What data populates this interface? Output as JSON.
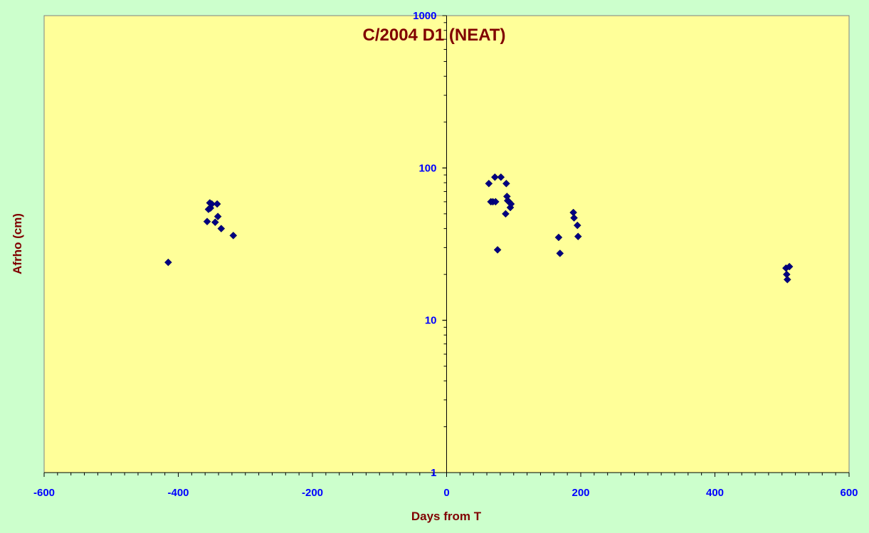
{
  "chart_data": {
    "type": "scatter",
    "title": "C/2004 D1 (NEAT)",
    "xlabel": "Days from T",
    "ylabel": "Afrho (cm)",
    "xlim": [
      -600,
      600
    ],
    "ylim": [
      1,
      1000
    ],
    "yscale": "log",
    "x_ticks": [
      -600,
      -400,
      -200,
      0,
      200,
      400,
      600
    ],
    "x_tick_labels": [
      "-600",
      "-400",
      "-200",
      "0",
      "200",
      "400",
      "600"
    ],
    "y_ticks": [
      1,
      10,
      100,
      1000
    ],
    "y_tick_labels": [
      "1",
      "10",
      "100",
      "1000"
    ],
    "grid": false,
    "legend": "none",
    "colors": {
      "background": "#ccffcc",
      "plot_area": "#ffff99",
      "marker": "#000080",
      "title": "#800000",
      "tick_labels": "#0000ff"
    },
    "series": [
      {
        "marker": "diamond",
        "x": [
          -415,
          -357,
          -355,
          -353,
          -352,
          -350,
          -345,
          -342,
          -341,
          -336,
          -318,
          63,
          66,
          69,
          72,
          73,
          76,
          81,
          88,
          89,
          90,
          91,
          93,
          95,
          96,
          167,
          169,
          189,
          190,
          195,
          196,
          506,
          507,
          508,
          511
        ],
        "y": [
          24,
          44.5,
          53.5,
          59,
          54.5,
          58,
          44,
          58,
          48,
          40,
          36,
          79,
          60,
          60,
          87,
          60,
          29,
          87,
          50,
          79,
          65,
          61,
          60,
          55,
          58,
          35,
          27.5,
          51,
          47,
          42,
          35.5,
          22,
          20,
          18.5,
          22.5
        ]
      }
    ]
  }
}
